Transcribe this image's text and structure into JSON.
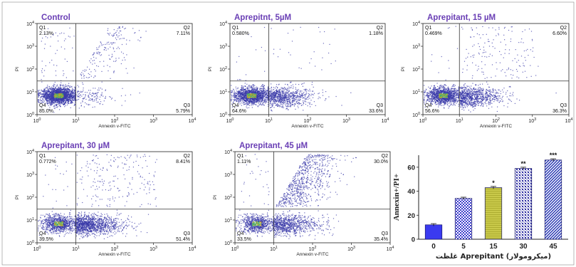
{
  "colors": {
    "title": "#6a3fb5",
    "dot": "#3a3aa8",
    "axis": "#222222",
    "bar_solid": "#3a3af0",
    "bar_check": "#3a3acc",
    "bar_yellow": "#c9c94a",
    "bar_dots": "#2a2aa0",
    "bar_stripe": "#1f2fb0",
    "frame": "#888888"
  },
  "flow_common": {
    "ylabel": "PI",
    "xlabel": "Annexin v-FITC",
    "ticks": [
      "10^0",
      "10^1",
      "10^2",
      "10^3",
      "10^4"
    ]
  },
  "chart_data": [
    {
      "type": "scatter",
      "title": "Control",
      "xlabel": "Annexin v-FITC",
      "ylabel": "PI",
      "xscale": "log",
      "yscale": "log",
      "xlim": [
        1,
        10000
      ],
      "ylim": [
        1,
        10000
      ],
      "gate": {
        "x": 10,
        "y": 30
      },
      "quadrants": {
        "Q1": "2.13%",
        "Q2": "7.11%",
        "Q3": "5.79%",
        "Q4": "85.0%"
      }
    },
    {
      "type": "scatter",
      "title": "Aprepitnt, 5µM",
      "xlabel": "Annexin v-FITC",
      "ylabel": "PI",
      "xscale": "log",
      "yscale": "log",
      "xlim": [
        1,
        10000
      ],
      "ylim": [
        1,
        10000
      ],
      "gate": {
        "x": 10,
        "y": 30
      },
      "quadrants": {
        "Q1": "0.580%",
        "Q2": "1.18%",
        "Q3": "33.6%",
        "Q4": "64.6%"
      }
    },
    {
      "type": "scatter",
      "title": "Aprepitant, 15 µM",
      "xlabel": "Annexin v-FITC",
      "ylabel": "PI",
      "xscale": "log",
      "yscale": "log",
      "xlim": [
        1,
        10000
      ],
      "ylim": [
        1,
        10000
      ],
      "gate": {
        "x": 10,
        "y": 30
      },
      "quadrants": {
        "Q1": "0.469%",
        "Q2": "6.60%",
        "Q3": "36.3%",
        "Q4": "56.6%"
      }
    },
    {
      "type": "scatter",
      "title": "Aprepitant, 30 µM",
      "xlabel": "Annexin v-FITC",
      "ylabel": "PI",
      "xscale": "log",
      "yscale": "log",
      "xlim": [
        1,
        10000
      ],
      "ylim": [
        1,
        10000
      ],
      "gate": {
        "x": 10,
        "y": 30
      },
      "quadrants": {
        "Q1": "0.772%",
        "Q2": "8.41%",
        "Q3": "51.4%",
        "Q4": "39.5%"
      }
    },
    {
      "type": "scatter",
      "title": "Aprepitant, 45 µM",
      "xlabel": "Annexin v-FITC",
      "ylabel": "PI",
      "xscale": "log",
      "yscale": "log",
      "xlim": [
        1,
        10000
      ],
      "ylim": [
        1,
        10000
      ],
      "gate": {
        "x": 10,
        "y": 30
      },
      "quadrants": {
        "Q1": "1.11%",
        "Q2": "30.0%",
        "Q3": "35.4%",
        "Q4": "33.5%"
      }
    },
    {
      "type": "bar",
      "categories": [
        "0",
        "5",
        "15",
        "30",
        "45"
      ],
      "values": [
        12,
        34,
        43,
        59,
        66
      ],
      "errors": [
        1,
        1,
        1,
        1,
        1
      ],
      "significance": [
        "",
        "",
        "*",
        "**",
        "***"
      ],
      "ylabel": "Annexin+/PI+",
      "xlabel": "غلظت Aprepitant (میکرومولار)",
      "ylim": [
        0,
        70
      ],
      "yticks": [
        "0",
        "20",
        "40",
        "60"
      ]
    }
  ]
}
